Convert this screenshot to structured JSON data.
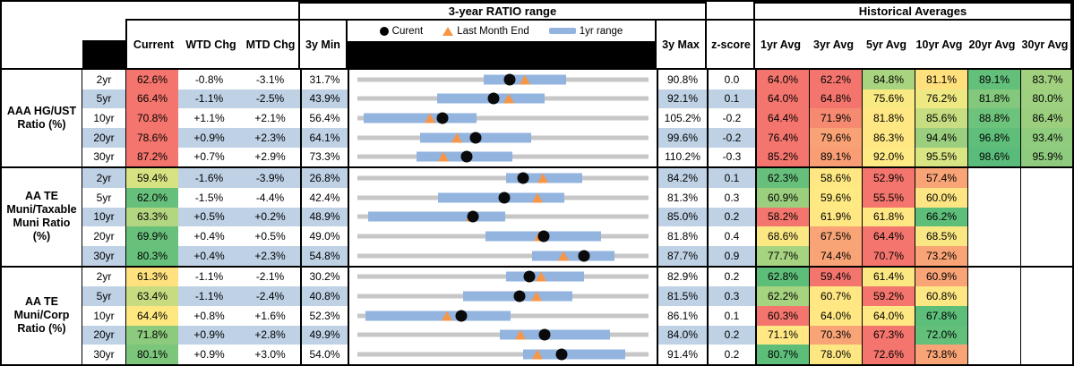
{
  "header": {
    "range_title": "3-year RATIO range",
    "hist_title": "Historical Averages",
    "col_current": "Current",
    "col_wtd": "WTD Chg",
    "col_mtd": "MTD Chg",
    "col_min": "3y Min",
    "col_max": "3y Max",
    "col_z": "z-score",
    "avg_cols": [
      "1yr Avg",
      "3yr Avg",
      "5yr Avg",
      "10yr Avg",
      "20yr Avg",
      "30yr Avg"
    ],
    "legend": {
      "current_label": "Curent",
      "last_month_label": "Last Month End",
      "range_label": "1yr range",
      "dot_icon": "black-circle",
      "triangle_icon": "orange-triangle",
      "bar_icon": "blue-bar"
    }
  },
  "colors": {
    "stripe_blue": "#bfd1e5",
    "bar_blue": "#92b4df",
    "track_gray": "#c7c7c7",
    "triangle_orange": "#f79646",
    "dot_black": "#0a0a0a"
  },
  "chart_data": {
    "type": "table",
    "title": "3-year RATIO range",
    "note": "Bullet-range chart per row: gray track spans 3y Min to 3y Max, blue bar is 1yr range, black dot is current, orange triangle is last month end. Values in percent.",
    "sections": [
      {
        "label": "AAA HG/UST Ratio (%)",
        "rows": [
          {
            "tenor": "2yr",
            "current": "62.6%",
            "current_bg": "#f4756d",
            "wtd": "-0.8%",
            "mtd": "-3.1%",
            "min": "31.7%",
            "max": "90.8%",
            "z": "0.0",
            "chart": {
              "min": 31.7,
              "max": 90.8,
              "bar_1yr": [
                57.3,
                74.0
              ],
              "current": 62.6,
              "last_month_end": 65.7
            },
            "avgs": [
              {
                "v": "64.0%",
                "bg": "#f4756d"
              },
              {
                "v": "62.2%",
                "bg": "#f4756d"
              },
              {
                "v": "84.8%",
                "bg": "#a8d480"
              },
              {
                "v": "81.1%",
                "bg": "#ffe07c"
              },
              {
                "v": "89.1%",
                "bg": "#62c07b"
              },
              {
                "v": "83.7%",
                "bg": "#a1d17f"
              }
            ]
          },
          {
            "tenor": "5yr",
            "current": "66.4%",
            "current_bg": "#f4756d",
            "wtd": "-1.1%",
            "mtd": "-2.5%",
            "min": "43.9%",
            "max": "92.1%",
            "z": "0.1",
            "chart": {
              "min": 43.9,
              "max": 92.1,
              "bar_1yr": [
                57.2,
                74.8
              ],
              "current": 66.4,
              "last_month_end": 68.9
            },
            "avgs": [
              {
                "v": "64.0%",
                "bg": "#f4756d"
              },
              {
                "v": "64.8%",
                "bg": "#f4756d"
              },
              {
                "v": "75.6%",
                "bg": "#f8e983"
              },
              {
                "v": "76.2%",
                "bg": "#eee883"
              },
              {
                "v": "81.8%",
                "bg": "#83c87d"
              },
              {
                "v": "80.0%",
                "bg": "#9dd07f"
              }
            ]
          },
          {
            "tenor": "10yr",
            "current": "70.8%",
            "current_bg": "#f4756d",
            "wtd": "+1.1%",
            "mtd": "+2.1%",
            "min": "56.4%",
            "max": "105.2%",
            "z": "-0.2",
            "chart": {
              "min": 56.4,
              "max": 105.2,
              "bar_1yr": [
                57.7,
                76.5
              ],
              "current": 70.8,
              "last_month_end": 68.7
            },
            "avgs": [
              {
                "v": "64.4%",
                "bg": "#f4756d"
              },
              {
                "v": "71.9%",
                "bg": "#f58a70"
              },
              {
                "v": "81.8%",
                "bg": "#ffe883"
              },
              {
                "v": "85.6%",
                "bg": "#c6dd82"
              },
              {
                "v": "88.8%",
                "bg": "#6ec37c"
              },
              {
                "v": "86.4%",
                "bg": "#9bcf7e"
              }
            ]
          },
          {
            "tenor": "20yr",
            "current": "78.6%",
            "current_bg": "#f4756d",
            "wtd": "+0.9%",
            "mtd": "+2.3%",
            "min": "64.1%",
            "max": "99.6%",
            "z": "-0.2",
            "chart": {
              "min": 64.1,
              "max": 99.6,
              "bar_1yr": [
                71.9,
                85.2
              ],
              "current": 78.6,
              "last_month_end": 76.3
            },
            "avgs": [
              {
                "v": "76.4%",
                "bg": "#f4756d"
              },
              {
                "v": "79.6%",
                "bg": "#f9a276"
              },
              {
                "v": "86.3%",
                "bg": "#ffe884"
              },
              {
                "v": "94.4%",
                "bg": "#9bcf7f"
              },
              {
                "v": "96.8%",
                "bg": "#5ebe7a"
              },
              {
                "v": "93.4%",
                "bg": "#90cc7e"
              }
            ]
          },
          {
            "tenor": "30yr",
            "current": "87.2%",
            "current_bg": "#f4756d",
            "wtd": "+0.7%",
            "mtd": "+2.9%",
            "min": "73.3%",
            "max": "110.2%",
            "z": "-0.3",
            "chart": {
              "min": 73.3,
              "max": 110.2,
              "bar_1yr": [
                80.9,
                92.9
              ],
              "current": 87.2,
              "last_month_end": 84.3
            },
            "avgs": [
              {
                "v": "85.2%",
                "bg": "#f4756d"
              },
              {
                "v": "89.1%",
                "bg": "#f89d74"
              },
              {
                "v": "92.0%",
                "bg": "#ffeb85"
              },
              {
                "v": "95.5%",
                "bg": "#d9e483"
              },
              {
                "v": "98.6%",
                "bg": "#5abc7a"
              },
              {
                "v": "95.9%",
                "bg": "#8fcb7e"
              }
            ]
          }
        ]
      },
      {
        "label": "AA TE Muni/Taxable Muni Ratio (%)",
        "rows": [
          {
            "tenor": "2yr",
            "current": "59.4%",
            "current_bg": "#d7e283",
            "wtd": "-1.6%",
            "mtd": "-3.9%",
            "min": "26.8%",
            "max": "84.2%",
            "z": "0.1",
            "chart": {
              "min": 26.8,
              "max": 84.2,
              "bar_1yr": [
                56.1,
                71.0
              ],
              "current": 59.4,
              "last_month_end": 63.3
            },
            "avgs": [
              {
                "v": "62.3%",
                "bg": "#66c07b"
              },
              {
                "v": "58.6%",
                "bg": "#ffe783"
              },
              {
                "v": "52.9%",
                "bg": "#f4756d"
              },
              {
                "v": "57.4%",
                "bg": "#f9a476"
              },
              {
                "v": "",
                "bg": "#ffffff"
              },
              {
                "v": "",
                "bg": "#ffffff"
              }
            ]
          },
          {
            "tenor": "5yr",
            "current": "62.0%",
            "current_bg": "#66c07b",
            "wtd": "-1.5%",
            "mtd": "-4.4%",
            "min": "42.4%",
            "max": "81.3%",
            "z": "0.3",
            "chart": {
              "min": 42.4,
              "max": 81.3,
              "bar_1yr": [
                53.3,
                69.9
              ],
              "current": 62.0,
              "last_month_end": 66.4
            },
            "avgs": [
              {
                "v": "60.9%",
                "bg": "#9bcf7e"
              },
              {
                "v": "59.6%",
                "bg": "#ffe983"
              },
              {
                "v": "55.5%",
                "bg": "#f4756d"
              },
              {
                "v": "60.0%",
                "bg": "#fde583"
              },
              {
                "v": "",
                "bg": "#ffffff"
              },
              {
                "v": "",
                "bg": "#ffffff"
              }
            ]
          },
          {
            "tenor": "10yr",
            "current": "63.3%",
            "current_bg": "#b3d680",
            "wtd": "+0.5%",
            "mtd": "+0.2%",
            "min": "48.9%",
            "max": "85.0%",
            "z": "0.2",
            "chart": {
              "min": 48.9,
              "max": 85.0,
              "bar_1yr": [
                50.4,
                67.2
              ],
              "current": 63.3,
              "last_month_end": 63.1
            },
            "avgs": [
              {
                "v": "58.2%",
                "bg": "#f4756d"
              },
              {
                "v": "61.9%",
                "bg": "#ffe883"
              },
              {
                "v": "61.8%",
                "bg": "#ffe883"
              },
              {
                "v": "66.2%",
                "bg": "#5dbe7a"
              },
              {
                "v": "",
                "bg": "#ffffff"
              },
              {
                "v": "",
                "bg": "#ffffff"
              }
            ]
          },
          {
            "tenor": "20yr",
            "current": "69.9%",
            "current_bg": "#68c07b",
            "wtd": "+0.4%",
            "mtd": "+0.5%",
            "min": "49.0%",
            "max": "81.8%",
            "z": "0.4",
            "chart": {
              "min": 49.0,
              "max": 81.8,
              "bar_1yr": [
                63.5,
                76.3
              ],
              "current": 69.9,
              "last_month_end": 69.4
            },
            "avgs": [
              {
                "v": "68.6%",
                "bg": "#fbe883"
              },
              {
                "v": "67.5%",
                "bg": "#f9a476"
              },
              {
                "v": "64.4%",
                "bg": "#f4756d"
              },
              {
                "v": "68.5%",
                "bg": "#f8e783"
              },
              {
                "v": "",
                "bg": "#ffffff"
              },
              {
                "v": "",
                "bg": "#ffffff"
              }
            ]
          },
          {
            "tenor": "30yr",
            "current": "80.3%",
            "current_bg": "#67c07b",
            "wtd": "+0.4%",
            "mtd": "+2.3%",
            "min": "54.8%",
            "max": "87.7%",
            "z": "0.9",
            "chart": {
              "min": 54.8,
              "max": 87.7,
              "bar_1yr": [
                74.5,
                83.7
              ],
              "current": 80.3,
              "last_month_end": 78.0
            },
            "avgs": [
              {
                "v": "77.7%",
                "bg": "#a5d37f"
              },
              {
                "v": "74.4%",
                "bg": "#f9a476"
              },
              {
                "v": "70.7%",
                "bg": "#f4756d"
              },
              {
                "v": "73.2%",
                "bg": "#f9a476"
              },
              {
                "v": "",
                "bg": "#ffffff"
              },
              {
                "v": "",
                "bg": "#ffffff"
              }
            ]
          }
        ]
      },
      {
        "label": "AA TE Muni/Corp Ratio (%)",
        "rows": [
          {
            "tenor": "2yr",
            "current": "61.3%",
            "current_bg": "#ffe17d",
            "wtd": "-1.1%",
            "mtd": "-2.1%",
            "min": "30.2%",
            "max": "82.9%",
            "z": "0.2",
            "chart": {
              "min": 30.2,
              "max": 82.9,
              "bar_1yr": [
                57.1,
                71.1
              ],
              "current": 61.3,
              "last_month_end": 63.4
            },
            "avgs": [
              {
                "v": "62.8%",
                "bg": "#5dbe7a"
              },
              {
                "v": "59.4%",
                "bg": "#f4756d"
              },
              {
                "v": "61.4%",
                "bg": "#fbe883"
              },
              {
                "v": "60.9%",
                "bg": "#f9a476"
              },
              {
                "v": "",
                "bg": "#ffffff"
              },
              {
                "v": "",
                "bg": "#ffffff"
              }
            ]
          },
          {
            "tenor": "5yr",
            "current": "63.4%",
            "current_bg": "#c7dc81",
            "wtd": "-1.1%",
            "mtd": "-2.4%",
            "min": "40.8%",
            "max": "81.5%",
            "z": "0.3",
            "chart": {
              "min": 40.8,
              "max": 81.5,
              "bar_1yr": [
                55.6,
                70.8
              ],
              "current": 63.4,
              "last_month_end": 65.8
            },
            "avgs": [
              {
                "v": "62.2%",
                "bg": "#a5d37f"
              },
              {
                "v": "60.7%",
                "bg": "#ffe883"
              },
              {
                "v": "59.2%",
                "bg": "#f4756d"
              },
              {
                "v": "60.8%",
                "bg": "#fde783"
              },
              {
                "v": "",
                "bg": "#ffffff"
              },
              {
                "v": "",
                "bg": "#ffffff"
              }
            ]
          },
          {
            "tenor": "10yr",
            "current": "64.4%",
            "current_bg": "#ffe880",
            "wtd": "+0.8%",
            "mtd": "+1.6%",
            "min": "52.3%",
            "max": "86.1%",
            "z": "0.1",
            "chart": {
              "min": 52.3,
              "max": 86.1,
              "bar_1yr": [
                53.4,
                70.1
              ],
              "current": 64.4,
              "last_month_end": 62.8
            },
            "avgs": [
              {
                "v": "60.3%",
                "bg": "#f4756d"
              },
              {
                "v": "64.0%",
                "bg": "#ffe883"
              },
              {
                "v": "64.0%",
                "bg": "#ffe883"
              },
              {
                "v": "67.8%",
                "bg": "#5dbe7a"
              },
              {
                "v": "",
                "bg": "#ffffff"
              },
              {
                "v": "",
                "bg": "#ffffff"
              }
            ]
          },
          {
            "tenor": "20yr",
            "current": "71.8%",
            "current_bg": "#8cca7d",
            "wtd": "+0.9%",
            "mtd": "+2.8%",
            "min": "49.9%",
            "max": "84.0%",
            "z": "0.2",
            "chart": {
              "min": 49.9,
              "max": 84.0,
              "bar_1yr": [
                66.6,
                79.3
              ],
              "current": 71.8,
              "last_month_end": 69.0
            },
            "avgs": [
              {
                "v": "71.1%",
                "bg": "#ffe884"
              },
              {
                "v": "70.3%",
                "bg": "#f9a476"
              },
              {
                "v": "67.3%",
                "bg": "#f4756d"
              },
              {
                "v": "72.0%",
                "bg": "#62c07b"
              },
              {
                "v": "",
                "bg": "#ffffff"
              },
              {
                "v": "",
                "bg": "#ffffff"
              }
            ]
          },
          {
            "tenor": "30yr",
            "current": "80.1%",
            "current_bg": "#7cc67c",
            "wtd": "+0.9%",
            "mtd": "+3.0%",
            "min": "54.0%",
            "max": "91.4%",
            "z": "0.2",
            "chart": {
              "min": 54.0,
              "max": 91.4,
              "bar_1yr": [
                75.3,
                88.2
              ],
              "current": 80.1,
              "last_month_end": 77.1
            },
            "avgs": [
              {
                "v": "80.7%",
                "bg": "#5dbe7a"
              },
              {
                "v": "78.0%",
                "bg": "#fde783"
              },
              {
                "v": "72.6%",
                "bg": "#f4756d"
              },
              {
                "v": "73.8%",
                "bg": "#f9a476"
              },
              {
                "v": "",
                "bg": "#ffffff"
              },
              {
                "v": "",
                "bg": "#ffffff"
              }
            ]
          }
        ]
      }
    ]
  }
}
